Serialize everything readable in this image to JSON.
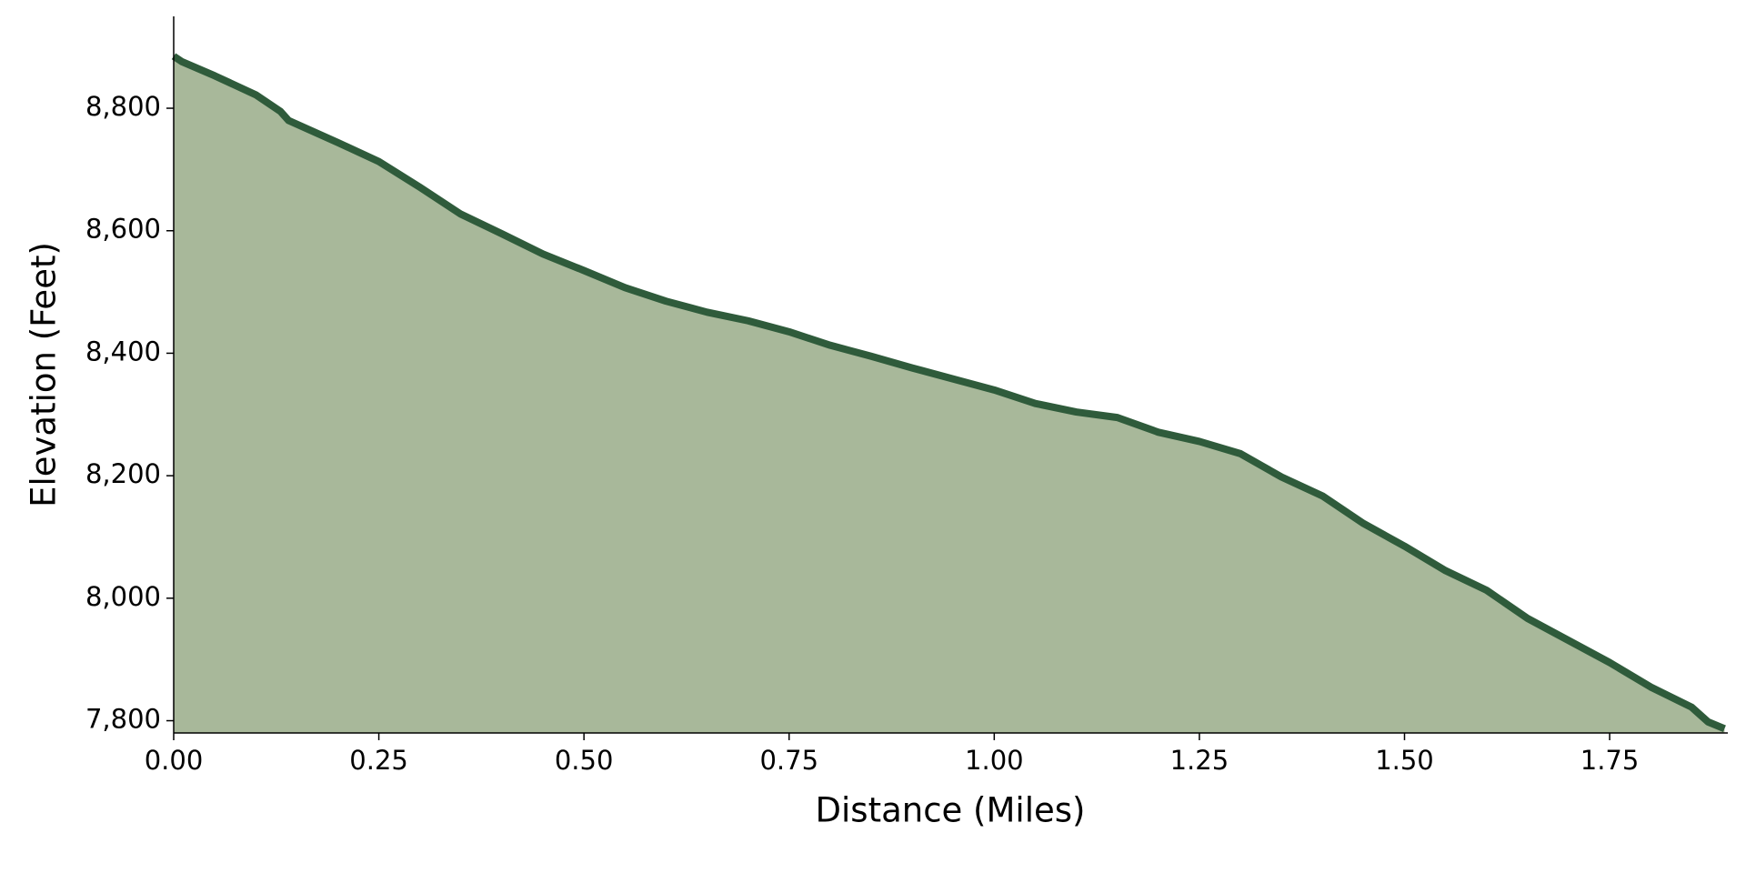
{
  "chart_data": {
    "type": "area",
    "xlabel": "Distance (Miles)",
    "ylabel": "Elevation (Feet)",
    "x": [
      0,
      0.01,
      0.05,
      0.1,
      0.13,
      0.14,
      0.2,
      0.25,
      0.3,
      0.35,
      0.4,
      0.45,
      0.5,
      0.55,
      0.6,
      0.65,
      0.7,
      0.75,
      0.8,
      0.85,
      0.9,
      0.95,
      1.0,
      1.05,
      1.1,
      1.15,
      1.2,
      1.25,
      1.3,
      1.35,
      1.4,
      1.45,
      1.5,
      1.55,
      1.6,
      1.65,
      1.7,
      1.75,
      1.8,
      1.85,
      1.87,
      1.89
    ],
    "series": [
      {
        "color": "#2f5b3b",
        "fill": "#a8b89a",
        "values": [
          8885,
          8876,
          8853,
          8822,
          8795,
          8780,
          8744,
          8713,
          8671,
          8627,
          8595,
          8562,
          8535,
          8507,
          8485,
          8467,
          8453,
          8435,
          8413,
          8395,
          8376,
          8358,
          8340,
          8318,
          8304,
          8295,
          8271,
          8256,
          8236,
          8198,
          8167,
          8122,
          8085,
          8045,
          8013,
          7967,
          7931,
          7895,
          7855,
          7822,
          7798,
          7787
        ]
      }
    ],
    "xlim": [
      0,
      1.894
    ],
    "ylim": [
      7780,
      8950
    ],
    "xticks": [
      {
        "value": 0,
        "label": "0.00"
      },
      {
        "value": 0.25,
        "label": "0.25"
      },
      {
        "value": 0.5,
        "label": "0.50"
      },
      {
        "value": 0.75,
        "label": "0.75"
      },
      {
        "value": 1,
        "label": "1.00"
      },
      {
        "value": 1.25,
        "label": "1.25"
      },
      {
        "value": 1.5,
        "label": "1.50"
      },
      {
        "value": 1.75,
        "label": "1.75"
      }
    ],
    "yticks": [
      {
        "value": 7800,
        "label": "7,800"
      },
      {
        "value": 8000,
        "label": "8,000"
      },
      {
        "value": 8200,
        "label": "8,200"
      },
      {
        "value": 8400,
        "label": "8,400"
      },
      {
        "value": 8600,
        "label": "8,600"
      },
      {
        "value": 8800,
        "label": "8,800"
      }
    ]
  }
}
